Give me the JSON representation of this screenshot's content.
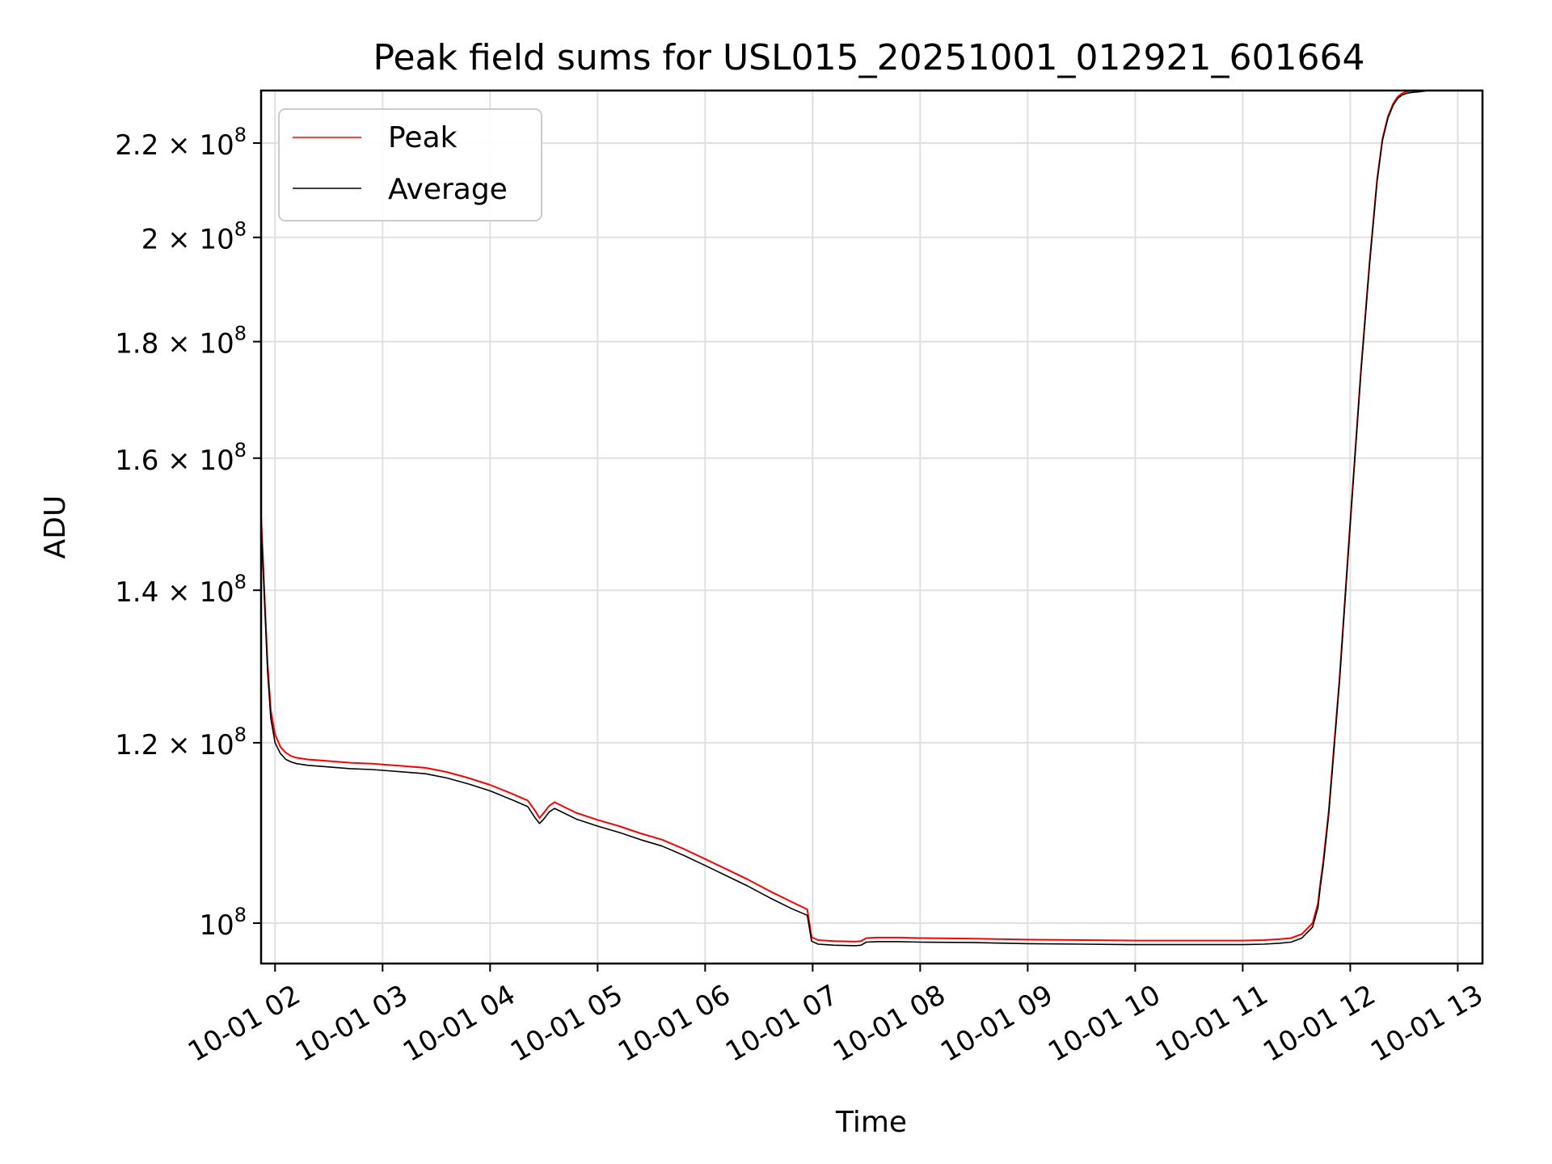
{
  "chart_data": {
    "type": "line",
    "title": "Peak field sums for USL015_20251001_012921_601664",
    "xlabel": "Time",
    "ylabel": "ADU",
    "y_scale": "log",
    "xlim": [
      1.87,
      13.23
    ],
    "ylim": [
      96000000,
      232000000
    ],
    "grid": true,
    "legend_position": "top-left",
    "x_ticks": [
      {
        "value": 2,
        "label": "10-01 02"
      },
      {
        "value": 3,
        "label": "10-01 03"
      },
      {
        "value": 4,
        "label": "10-01 04"
      },
      {
        "value": 5,
        "label": "10-01 05"
      },
      {
        "value": 6,
        "label": "10-01 06"
      },
      {
        "value": 7,
        "label": "10-01 07"
      },
      {
        "value": 8,
        "label": "10-01 08"
      },
      {
        "value": 9,
        "label": "10-01 09"
      },
      {
        "value": 10,
        "label": "10-01 10"
      },
      {
        "value": 11,
        "label": "10-01 11"
      },
      {
        "value": 12,
        "label": "10-01 12"
      },
      {
        "value": 13,
        "label": "10-01 13"
      }
    ],
    "y_ticks": [
      {
        "value": 100000000,
        "mantissa": "",
        "exponent": "8"
      },
      {
        "value": 120000000,
        "mantissa": "1.2",
        "exponent": "8"
      },
      {
        "value": 140000000,
        "mantissa": "1.4",
        "exponent": "8"
      },
      {
        "value": 160000000,
        "mantissa": "1.6",
        "exponent": "8"
      },
      {
        "value": 180000000,
        "mantissa": "1.8",
        "exponent": "8"
      },
      {
        "value": 200000000,
        "mantissa": "2",
        "exponent": "8"
      },
      {
        "value": 220000000,
        "mantissa": "2.2",
        "exponent": "8"
      }
    ],
    "series": [
      {
        "name": "Peak",
        "color": "#ff0000",
        "x": [
          1.87,
          1.9,
          1.93,
          1.96,
          2.0,
          2.05,
          2.1,
          2.15,
          2.2,
          2.3,
          2.5,
          2.7,
          2.9,
          3.0,
          3.2,
          3.4,
          3.6,
          3.8,
          4.0,
          4.2,
          4.35,
          4.42,
          4.46,
          4.5,
          4.55,
          4.6,
          4.7,
          4.8,
          5.0,
          5.2,
          5.4,
          5.6,
          5.8,
          6.0,
          6.2,
          6.4,
          6.6,
          6.8,
          6.95,
          6.99,
          7.05,
          7.2,
          7.4,
          7.45,
          7.5,
          7.6,
          7.8,
          8.0,
          8.5,
          9.0,
          9.5,
          10.0,
          10.5,
          11.0,
          11.2,
          11.35,
          11.45,
          11.55,
          11.65,
          11.7,
          11.72,
          11.75,
          11.8,
          11.9,
          12.0,
          12.1,
          12.18,
          12.25,
          12.3,
          12.35,
          12.4,
          12.44,
          12.48,
          12.52,
          12.56,
          12.6,
          12.64,
          12.67,
          12.7,
          12.73,
          12.76,
          12.8,
          12.9,
          13.0,
          13.1,
          13.15
        ],
        "y": [
          151000000,
          140000000,
          130000000,
          124000000,
          121000000,
          119500000,
          118800000,
          118400000,
          118200000,
          118000000,
          117800000,
          117600000,
          117500000,
          117400000,
          117200000,
          117000000,
          116500000,
          115800000,
          115000000,
          114000000,
          113200000,
          112000000,
          111200000,
          111800000,
          112600000,
          113000000,
          112400000,
          111800000,
          111000000,
          110300000,
          109500000,
          108800000,
          107800000,
          106700000,
          105600000,
          104500000,
          103300000,
          102200000,
          101400000,
          98600000,
          98300000,
          98200000,
          98150000,
          98200000,
          98500000,
          98550000,
          98550000,
          98500000,
          98450000,
          98350000,
          98300000,
          98250000,
          98250000,
          98250000,
          98300000,
          98400000,
          98500000,
          98900000,
          100000000,
          102000000,
          104000000,
          106500000,
          112000000,
          128000000,
          150000000,
          175000000,
          195000000,
          212000000,
          221000000,
          226000000,
          229000000,
          230500000,
          231300000,
          231700000,
          231900000,
          232000000,
          232000000,
          232000000,
          232000000,
          232000000,
          232000000,
          232000000,
          232000000,
          232000000,
          232000000,
          232000000
        ]
      },
      {
        "name": "Average",
        "color": "#000000",
        "x": [
          1.87,
          1.9,
          1.93,
          1.96,
          2.0,
          2.05,
          2.1,
          2.15,
          2.2,
          2.3,
          2.5,
          2.7,
          2.9,
          3.0,
          3.2,
          3.4,
          3.6,
          3.8,
          4.0,
          4.2,
          4.35,
          4.42,
          4.46,
          4.5,
          4.55,
          4.6,
          4.7,
          4.8,
          5.0,
          5.2,
          5.4,
          5.6,
          5.8,
          6.0,
          6.2,
          6.4,
          6.6,
          6.8,
          6.95,
          6.99,
          7.05,
          7.2,
          7.4,
          7.45,
          7.5,
          7.6,
          7.8,
          8.0,
          8.5,
          9.0,
          9.5,
          10.0,
          10.5,
          11.0,
          11.2,
          11.35,
          11.45,
          11.55,
          11.65,
          11.7,
          11.72,
          11.75,
          11.8,
          11.9,
          12.0,
          12.1,
          12.18,
          12.25,
          12.3,
          12.35,
          12.4,
          12.44,
          12.48,
          12.52,
          12.56,
          12.6,
          12.64,
          12.67,
          12.7,
          12.73,
          12.76,
          12.8,
          12.9,
          13.0,
          13.1,
          13.15
        ],
        "y": [
          150000000,
          139000000,
          129000000,
          123000000,
          120000000,
          118700000,
          118000000,
          117700000,
          117500000,
          117300000,
          117100000,
          116900000,
          116800000,
          116700000,
          116500000,
          116300000,
          115800000,
          115100000,
          114300000,
          113300000,
          112500000,
          111200000,
          110600000,
          111100000,
          111900000,
          112300000,
          111700000,
          111100000,
          110300000,
          109600000,
          108800000,
          108100000,
          107100000,
          106000000,
          104900000,
          103800000,
          102600000,
          101500000,
          100800000,
          98200000,
          97900000,
          97800000,
          97750000,
          97800000,
          98100000,
          98150000,
          98150000,
          98100000,
          98050000,
          97950000,
          97900000,
          97850000,
          97850000,
          97850000,
          97900000,
          98000000,
          98100000,
          98500000,
          99600000,
          101600000,
          103600000,
          106100000,
          111600000,
          127600000,
          149600000,
          174600000,
          194600000,
          211600000,
          220600000,
          225600000,
          228600000,
          230100000,
          230900000,
          231300000,
          231500000,
          231600000,
          231700000,
          231800000,
          231900000,
          232000000,
          232000000,
          232000000,
          232000000,
          232000000,
          232000000,
          232000000
        ]
      }
    ]
  }
}
